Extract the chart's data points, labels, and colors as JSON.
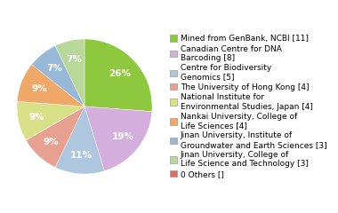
{
  "labels": [
    "Mined from GenBank, NCBI [11]",
    "Canadian Centre for DNA\nBarcoding [8]",
    "Centre for Biodiversity\nGenomics [5]",
    "The University of Hong Kong [4]",
    "National Institute for\nEnvironmental Studies, Japan [4]",
    "Nankai University, College of\nLife Sciences [4]",
    "Jinan University, Institute of\nGroundwater and Earth Sciences [3]",
    "Jinan University, College of\nLife Science and Technology [3]",
    "0 Others []"
  ],
  "values": [
    11,
    8,
    5,
    4,
    4,
    4,
    3,
    3,
    0
  ],
  "colors": [
    "#8dc83e",
    "#d4aedd",
    "#aec6de",
    "#e8a090",
    "#d8e088",
    "#f0a868",
    "#98b8d8",
    "#b8d898",
    "#d87060"
  ],
  "pct_labels": [
    "26%",
    "19%",
    "11%",
    "9%",
    "9%",
    "9%",
    "7%",
    "7%",
    "0%"
  ],
  "background_color": "#ffffff",
  "legend_fontsize": 6.5,
  "autopct_fontsize": 7.5
}
